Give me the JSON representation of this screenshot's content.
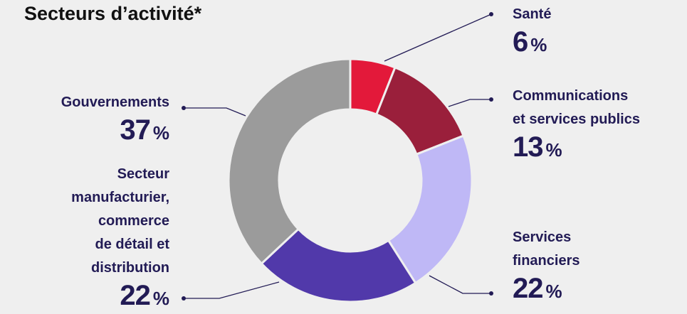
{
  "chart_data": {
    "type": "donut",
    "title": "Secteurs d’activité*",
    "categories": [
      "Santé",
      "Communications\net services publics",
      "Services\nfinanciers",
      "Secteur\nmanufacturier,\ncommerce\nde détail et\ndistribution",
      "Gouvernements"
    ],
    "values": [
      6,
      13,
      22,
      22,
      37
    ],
    "unit": "%",
    "colors": [
      "#e3193a",
      "#9a1f3b",
      "#bfb8f6",
      "#5139aa",
      "#9b9b9b"
    ]
  }
}
